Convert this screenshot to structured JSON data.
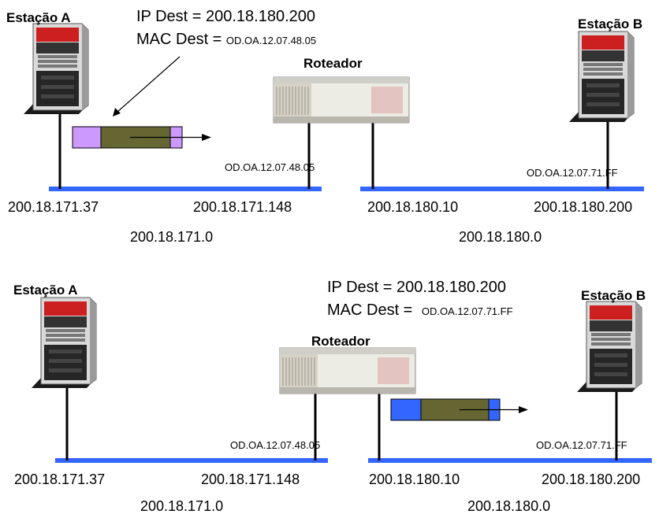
{
  "colors": {
    "lan": "#3366ff",
    "frame_header_top": "#cc99ff",
    "frame_header_bottom": "#3366ff",
    "frame_body": "#666633"
  },
  "top": {
    "station_a": "Estação A",
    "station_b": "Estação B",
    "router": "Roteador",
    "ip_dest_line": "IP Dest = 200.18.180.200",
    "mac_dest_prefix": "MAC Dest = ",
    "mac_dest_value": "OD.OA.12.07.48.05",
    "router_mac_left": "OD.OA.12.07.48.05",
    "station_b_mac": "OD.OA.12.07.71.FF",
    "addr_a": "200.18.171.37",
    "addr_router_left": "200.18.171.148",
    "addr_router_right": "200.18.180.10",
    "addr_b": "200.18.180.200",
    "net_left": "200.18.171.0",
    "net_right": "200.18.180.0"
  },
  "bottom": {
    "station_a": "Estação A",
    "station_b": "Estação B",
    "router": "Roteador",
    "ip_dest_line": "IP Dest = 200.18.180.200",
    "mac_dest_prefix": "MAC Dest = ",
    "mac_dest_value": "OD.OA.12.07.71.FF",
    "router_mac_left": "OD.OA.12.07.48.05",
    "station_b_mac": "OD.OA.12.07.71.FF",
    "addr_a": "200.18.171.37",
    "addr_router_left": "200.18.171.148",
    "addr_router_right": "200.18.180.10",
    "addr_b": "200.18.180.200",
    "net_left": "200.18.171.0",
    "net_right": "200.18.180.0"
  }
}
